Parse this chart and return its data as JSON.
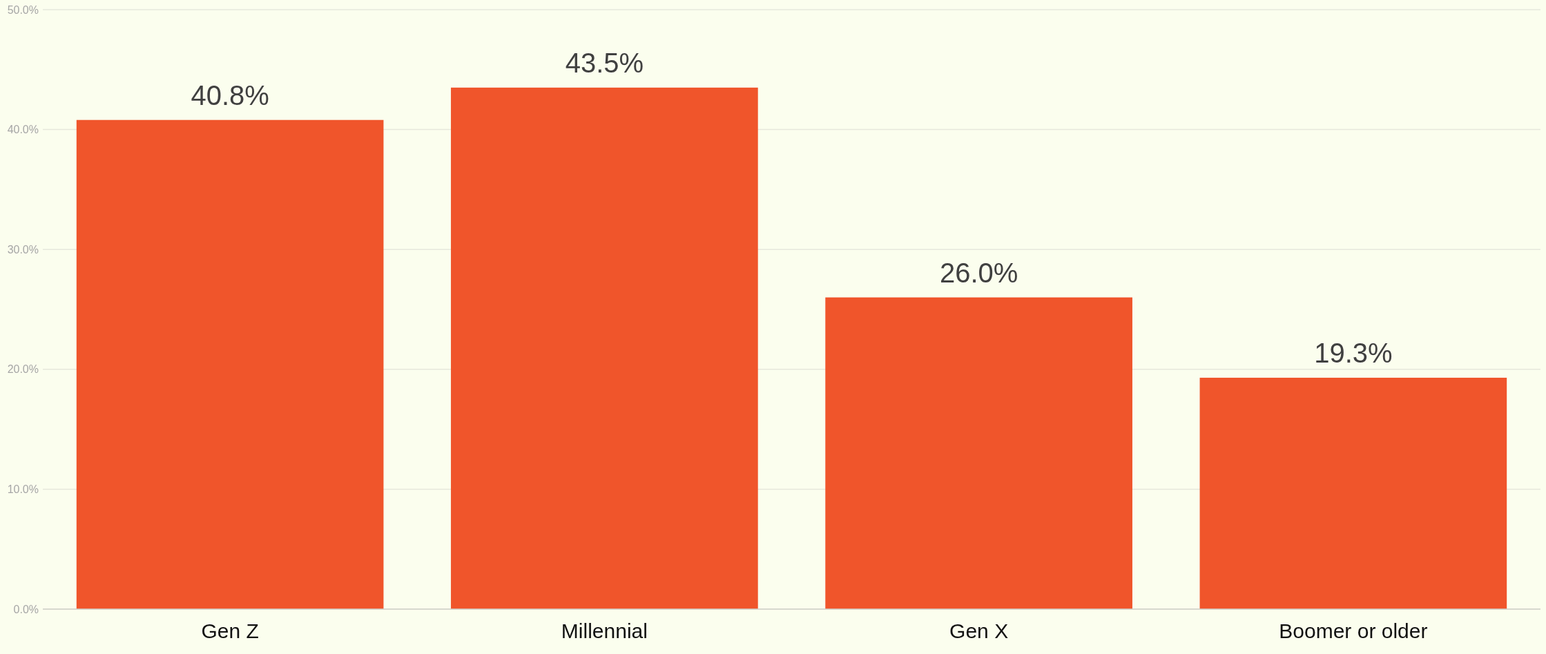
{
  "chart_data": {
    "type": "bar",
    "categories": [
      "Gen Z",
      "Millennial",
      "Gen X",
      "Boomer or older"
    ],
    "values": [
      40.8,
      43.5,
      26.0,
      19.3
    ],
    "value_labels": [
      "40.8%",
      "43.5%",
      "26.0%",
      "19.3%"
    ],
    "color": "#f0552b",
    "ylim": [
      0,
      50
    ],
    "yticks": [
      {
        "value": 0,
        "label": "0.0%"
      },
      {
        "value": 10,
        "label": "10.0%"
      },
      {
        "value": 20,
        "label": "20.0%"
      },
      {
        "value": 30,
        "label": "30.0%"
      },
      {
        "value": 40,
        "label": "40.0%"
      },
      {
        "value": 50,
        "label": "50.0%"
      }
    ],
    "grid": "y"
  }
}
